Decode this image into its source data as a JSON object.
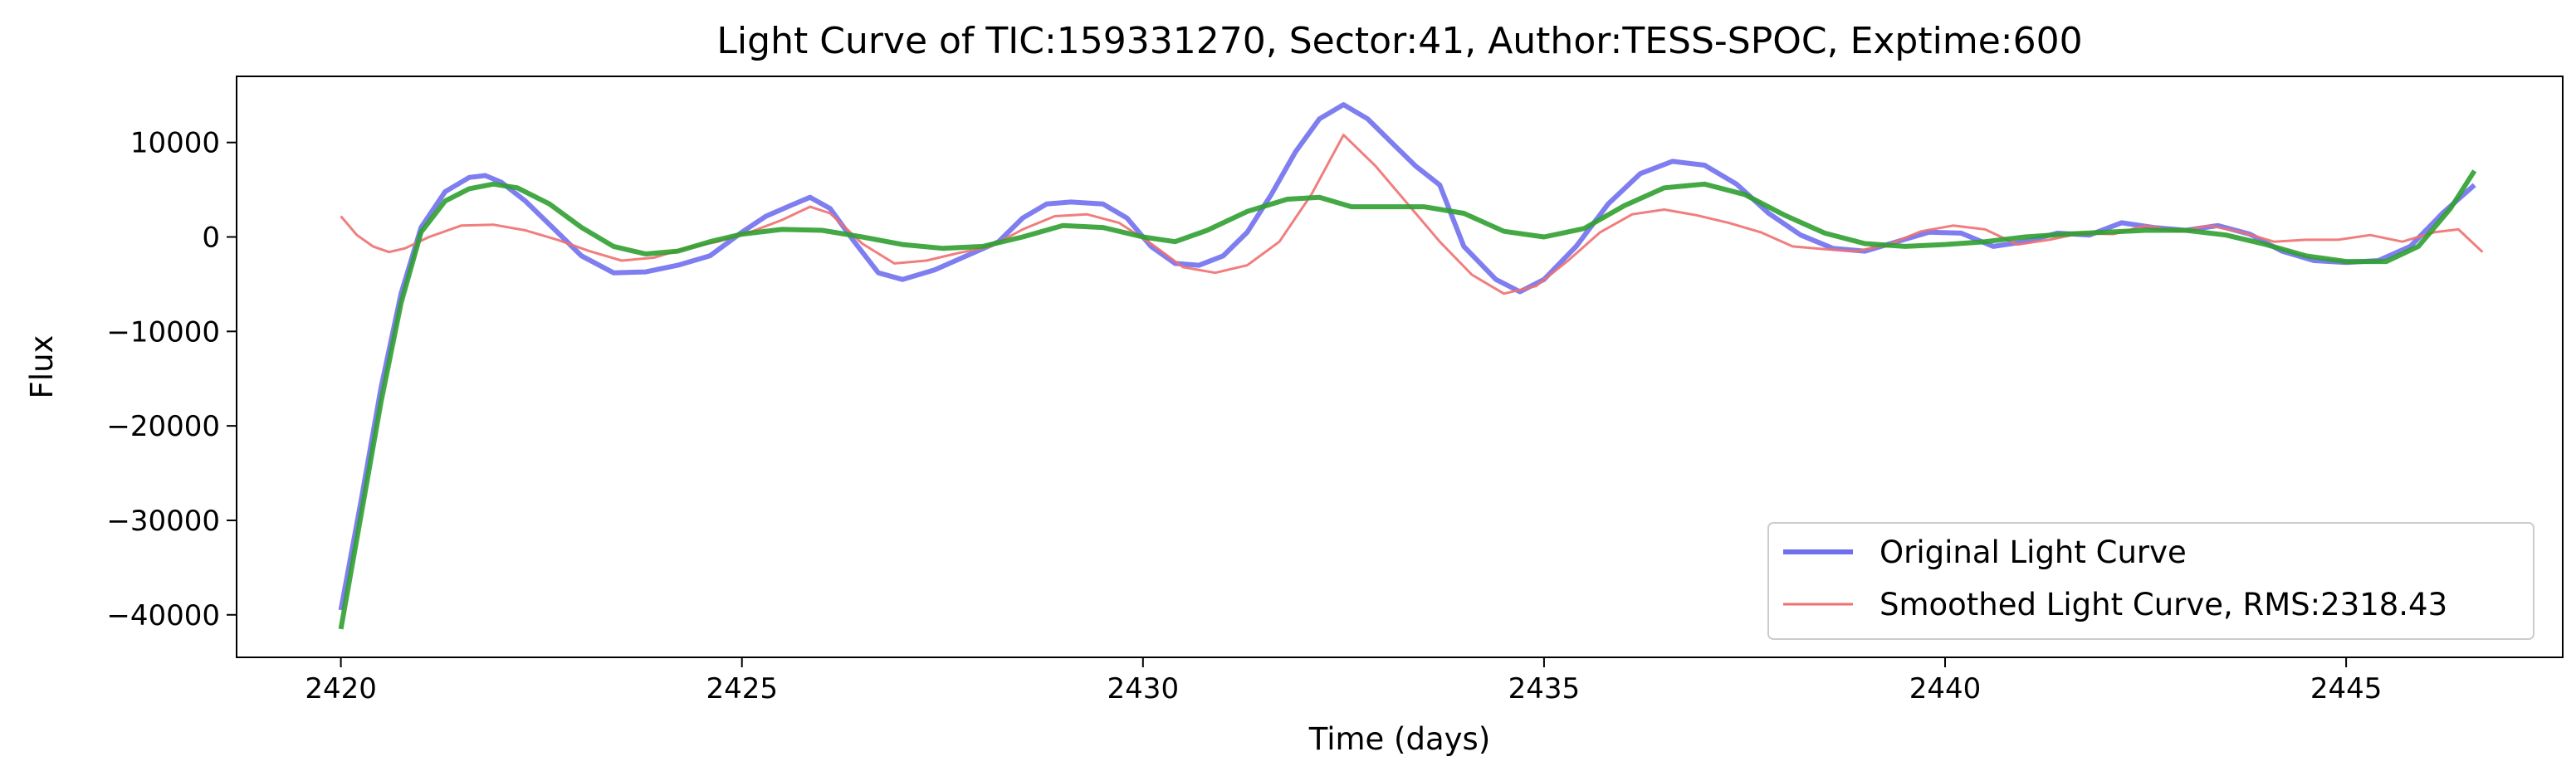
{
  "chart_data": {
    "type": "line",
    "title": "Light Curve of TIC:159331270, Sector:41, Author:TESS-SPOC, Exptime:600",
    "xlabel": "Time (days)",
    "ylabel": "Flux",
    "xlim": [
      2418.7,
      2447.7
    ],
    "ylim": [
      -44500,
      17000
    ],
    "xticks": [
      2420,
      2425,
      2430,
      2435,
      2440,
      2445
    ],
    "yticks": [
      10000,
      0,
      -10000,
      -20000,
      -30000,
      -40000
    ],
    "ytick_labels": [
      "10000",
      "0",
      "−10000",
      "−20000",
      "−30000",
      "−40000"
    ],
    "legend": {
      "position": "lower-right"
    },
    "series": [
      {
        "name": "Original Light Curve",
        "color": "#7070ee",
        "points": [
          [
            2420.0,
            -39500
          ],
          [
            2420.25,
            -28000
          ],
          [
            2420.5,
            -16000
          ],
          [
            2420.75,
            -6000
          ],
          [
            2421.0,
            1000
          ],
          [
            2421.3,
            4800
          ],
          [
            2421.6,
            6300
          ],
          [
            2421.8,
            6500
          ],
          [
            2422.0,
            5800
          ],
          [
            2422.3,
            3800
          ],
          [
            2422.7,
            500
          ],
          [
            2423.0,
            -2000
          ],
          [
            2423.4,
            -3800
          ],
          [
            2423.8,
            -3700
          ],
          [
            2424.2,
            -3000
          ],
          [
            2424.6,
            -2000
          ],
          [
            2425.0,
            500
          ],
          [
            2425.3,
            2200
          ],
          [
            2425.6,
            3300
          ],
          [
            2425.85,
            4200
          ],
          [
            2426.1,
            3000
          ],
          [
            2426.4,
            -500
          ],
          [
            2426.7,
            -3800
          ],
          [
            2427.0,
            -4500
          ],
          [
            2427.4,
            -3500
          ],
          [
            2427.8,
            -2000
          ],
          [
            2428.2,
            -500
          ],
          [
            2428.5,
            2000
          ],
          [
            2428.8,
            3500
          ],
          [
            2429.1,
            3700
          ],
          [
            2429.5,
            3500
          ],
          [
            2429.8,
            2000
          ],
          [
            2430.1,
            -1000
          ],
          [
            2430.4,
            -2800
          ],
          [
            2430.7,
            -3000
          ],
          [
            2431.0,
            -2000
          ],
          [
            2431.3,
            500
          ],
          [
            2431.6,
            4500
          ],
          [
            2431.9,
            9000
          ],
          [
            2432.2,
            12500
          ],
          [
            2432.5,
            14000
          ],
          [
            2432.8,
            12500
          ],
          [
            2433.1,
            10000
          ],
          [
            2433.4,
            7500
          ],
          [
            2433.7,
            5500
          ],
          [
            2434.0,
            -1000
          ],
          [
            2434.4,
            -4500
          ],
          [
            2434.7,
            -5800
          ],
          [
            2435.0,
            -4500
          ],
          [
            2435.4,
            -1000
          ],
          [
            2435.8,
            3500
          ],
          [
            2436.2,
            6700
          ],
          [
            2436.6,
            8000
          ],
          [
            2437.0,
            7600
          ],
          [
            2437.4,
            5600
          ],
          [
            2437.8,
            2500
          ],
          [
            2438.2,
            200
          ],
          [
            2438.6,
            -1200
          ],
          [
            2439.0,
            -1500
          ],
          [
            2439.4,
            -500
          ],
          [
            2439.8,
            500
          ],
          [
            2440.2,
            400
          ],
          [
            2440.6,
            -1000
          ],
          [
            2441.0,
            -500
          ],
          [
            2441.4,
            400
          ],
          [
            2441.8,
            200
          ],
          [
            2442.2,
            1500
          ],
          [
            2442.6,
            1000
          ],
          [
            2443.0,
            700
          ],
          [
            2443.4,
            1200
          ],
          [
            2443.8,
            300
          ],
          [
            2444.2,
            -1500
          ],
          [
            2444.6,
            -2500
          ],
          [
            2445.0,
            -2700
          ],
          [
            2445.4,
            -2500
          ],
          [
            2445.8,
            -1000
          ],
          [
            2446.2,
            2500
          ],
          [
            2446.6,
            5500
          ]
        ]
      },
      {
        "name": "Smoothed Light Curve, RMS:2318.43",
        "color": "#f07070",
        "points": [
          [
            2420.0,
            2200
          ],
          [
            2420.2,
            200
          ],
          [
            2420.4,
            -1000
          ],
          [
            2420.6,
            -1600
          ],
          [
            2420.8,
            -1200
          ],
          [
            2421.1,
            0
          ],
          [
            2421.5,
            1200
          ],
          [
            2421.9,
            1300
          ],
          [
            2422.3,
            700
          ],
          [
            2422.7,
            -300
          ],
          [
            2423.1,
            -1500
          ],
          [
            2423.5,
            -2500
          ],
          [
            2423.9,
            -2200
          ],
          [
            2424.3,
            -1200
          ],
          [
            2424.7,
            -500
          ],
          [
            2425.1,
            500
          ],
          [
            2425.5,
            1800
          ],
          [
            2425.85,
            3200
          ],
          [
            2426.1,
            2500
          ],
          [
            2426.5,
            -700
          ],
          [
            2426.9,
            -2800
          ],
          [
            2427.3,
            -2500
          ],
          [
            2427.7,
            -1700
          ],
          [
            2428.1,
            -1000
          ],
          [
            2428.5,
            800
          ],
          [
            2428.9,
            2200
          ],
          [
            2429.3,
            2400
          ],
          [
            2429.7,
            1500
          ],
          [
            2430.1,
            -700
          ],
          [
            2430.5,
            -3200
          ],
          [
            2430.9,
            -3800
          ],
          [
            2431.3,
            -3000
          ],
          [
            2431.7,
            -500
          ],
          [
            2432.1,
            4500
          ],
          [
            2432.5,
            10800
          ],
          [
            2432.9,
            7500
          ],
          [
            2433.3,
            3500
          ],
          [
            2433.7,
            -500
          ],
          [
            2434.1,
            -4000
          ],
          [
            2434.5,
            -6000
          ],
          [
            2434.9,
            -5200
          ],
          [
            2435.3,
            -2500
          ],
          [
            2435.7,
            500
          ],
          [
            2436.1,
            2400
          ],
          [
            2436.5,
            2900
          ],
          [
            2436.9,
            2300
          ],
          [
            2437.3,
            1500
          ],
          [
            2437.7,
            500
          ],
          [
            2438.1,
            -1000
          ],
          [
            2438.5,
            -1300
          ],
          [
            2438.9,
            -1500
          ],
          [
            2439.3,
            -800
          ],
          [
            2439.7,
            600
          ],
          [
            2440.1,
            1200
          ],
          [
            2440.5,
            800
          ],
          [
            2440.9,
            -800
          ],
          [
            2441.3,
            -300
          ],
          [
            2441.7,
            400
          ],
          [
            2442.1,
            300
          ],
          [
            2442.5,
            1200
          ],
          [
            2442.9,
            600
          ],
          [
            2443.3,
            1200
          ],
          [
            2443.7,
            500
          ],
          [
            2444.1,
            -500
          ],
          [
            2444.5,
            -300
          ],
          [
            2444.9,
            -300
          ],
          [
            2445.3,
            200
          ],
          [
            2445.7,
            -500
          ],
          [
            2446.1,
            500
          ],
          [
            2446.4,
            800
          ],
          [
            2446.7,
            -1600
          ]
        ]
      },
      {
        "name": "",
        "color": "#30a030",
        "points": [
          [
            2420.0,
            -41500
          ],
          [
            2420.25,
            -29500
          ],
          [
            2420.5,
            -17500
          ],
          [
            2420.75,
            -7000
          ],
          [
            2421.0,
            500
          ],
          [
            2421.3,
            3800
          ],
          [
            2421.6,
            5100
          ],
          [
            2421.9,
            5600
          ],
          [
            2422.2,
            5200
          ],
          [
            2422.6,
            3500
          ],
          [
            2423.0,
            1000
          ],
          [
            2423.4,
            -1000
          ],
          [
            2423.8,
            -1800
          ],
          [
            2424.2,
            -1500
          ],
          [
            2424.6,
            -500
          ],
          [
            2425.0,
            300
          ],
          [
            2425.5,
            800
          ],
          [
            2426.0,
            700
          ],
          [
            2426.5,
            0
          ],
          [
            2427.0,
            -800
          ],
          [
            2427.5,
            -1200
          ],
          [
            2428.0,
            -1000
          ],
          [
            2428.5,
            0
          ],
          [
            2429.0,
            1200
          ],
          [
            2429.5,
            1000
          ],
          [
            2430.0,
            0
          ],
          [
            2430.4,
            -500
          ],
          [
            2430.8,
            700
          ],
          [
            2431.3,
            2700
          ],
          [
            2431.8,
            4000
          ],
          [
            2432.2,
            4200
          ],
          [
            2432.6,
            3200
          ],
          [
            2433.0,
            3200
          ],
          [
            2433.5,
            3200
          ],
          [
            2434.0,
            2500
          ],
          [
            2434.5,
            600
          ],
          [
            2435.0,
            0
          ],
          [
            2435.5,
            900
          ],
          [
            2436.0,
            3300
          ],
          [
            2436.5,
            5200
          ],
          [
            2437.0,
            5600
          ],
          [
            2437.5,
            4500
          ],
          [
            2438.0,
            2300
          ],
          [
            2438.5,
            400
          ],
          [
            2439.0,
            -700
          ],
          [
            2439.5,
            -1000
          ],
          [
            2440.0,
            -800
          ],
          [
            2440.5,
            -500
          ],
          [
            2441.0,
            0
          ],
          [
            2441.5,
            300
          ],
          [
            2442.0,
            500
          ],
          [
            2442.5,
            700
          ],
          [
            2443.0,
            700
          ],
          [
            2443.5,
            200
          ],
          [
            2444.0,
            -800
          ],
          [
            2444.5,
            -2000
          ],
          [
            2445.0,
            -2600
          ],
          [
            2445.5,
            -2600
          ],
          [
            2445.9,
            -1000
          ],
          [
            2446.3,
            3000
          ],
          [
            2446.6,
            7000
          ]
        ]
      }
    ]
  }
}
